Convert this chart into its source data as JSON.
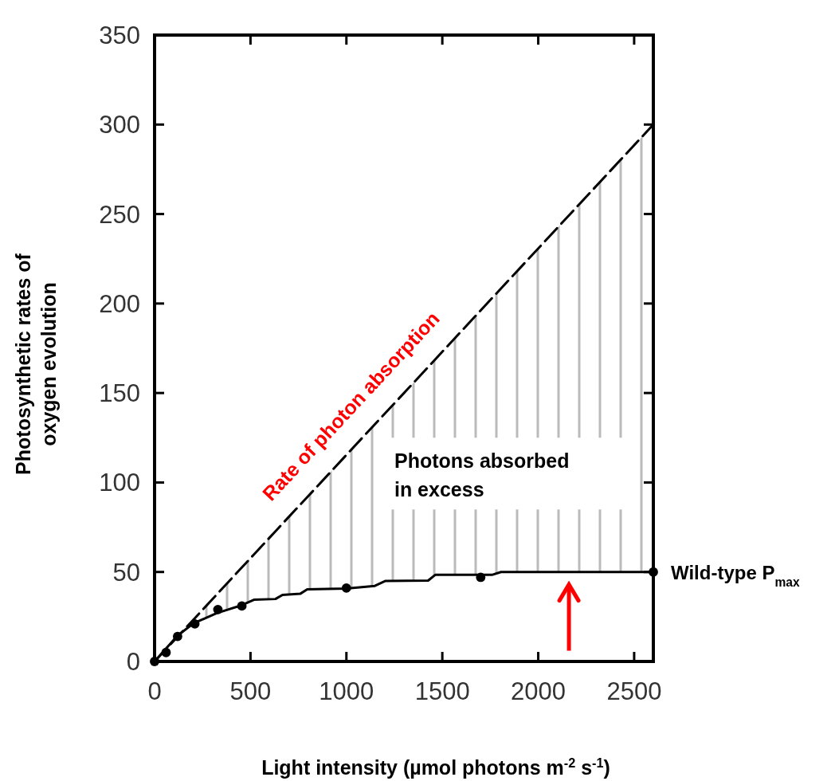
{
  "chart_data": {
    "type": "line",
    "xlabel": "Light intensity (µmol photons m$^{-2}$ s$^{-1}$)",
    "ylabel": "Photosynthetic rates of oxygen evolution",
    "xlim": [
      0,
      2600
    ],
    "ylim": [
      0,
      350
    ],
    "xticks": [
      0,
      500,
      1000,
      1500,
      2000,
      2500
    ],
    "yticks": [
      0,
      50,
      100,
      150,
      200,
      250,
      300,
      350
    ],
    "grid": false,
    "annotations": [
      "Rate of photon absorption",
      "Photons absorbed in excess"
    ],
    "series": [
      {
        "color": "#000000",
        "line_style": "dashed",
        "marker": "none",
        "x": [
          0,
          120,
          204,
          324,
          454,
          518,
          630,
          667,
          759,
          796,
          1000,
          1148,
          1204,
          1426,
          1463,
          1759,
          1806,
          2600
        ],
        "values": [
          0,
          13.8,
          23.5,
          37.4,
          52.4,
          59.8,
          72.7,
          77,
          87.6,
          91.8,
          115.4,
          132.5,
          138.9,
          164.5,
          168.8,
          203,
          208.4,
          300
        ],
        "lower": [
          0,
          14.5,
          21.3,
          27,
          31.4,
          34.5,
          34.9,
          37.2,
          37.8,
          40.3,
          40.7,
          42.2,
          45,
          45.2,
          48.4,
          48.4,
          50,
          50
        ],
        "upper": [
          0,
          13.8,
          23.5,
          37.4,
          52.4,
          59.8,
          72.7,
          77,
          87.6,
          91.8,
          115.4,
          132.5,
          138.9,
          164.5,
          168.8,
          203,
          208.4,
          300
        ]
      },
      {
        "name": "Wild-type P$_{max}$",
        "color": "#000000",
        "line_style": "solid",
        "marker": "none",
        "x": [
          0,
          120,
          204,
          324,
          454,
          518,
          630,
          667,
          759,
          796,
          1000,
          1148,
          1204,
          1426,
          1463,
          1759,
          1806,
          2600
        ],
        "values": [
          0,
          14.5,
          21.3,
          27,
          31.4,
          34.5,
          34.9,
          37.2,
          37.8,
          40.3,
          40.7,
          42.2,
          45,
          45.2,
          48.4,
          48.4,
          50,
          50
        ]
      },
      {
        "type": "scatter",
        "color": "#000000",
        "marker": "circle",
        "x": [
          0,
          60,
          120,
          210,
          330,
          455,
          1000,
          1700,
          2600
        ],
        "values": [
          0,
          5,
          14,
          21,
          29,
          31,
          41,
          47,
          50
        ]
      }
    ]
  }
}
